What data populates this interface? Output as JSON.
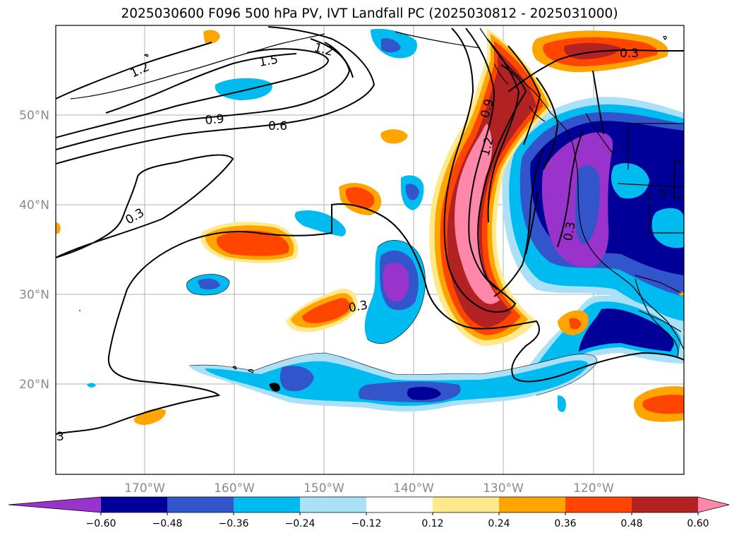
{
  "title": "2025030600 F096 500 hPa PV, IVT Landfall PC (2025030812 - 2025031000)",
  "map": {
    "lat_labels": [
      "50°N",
      "40°N",
      "30°N",
      "20°N"
    ],
    "lon_labels": [
      "170°W",
      "160°W",
      "150°W",
      "140°W",
      "130°W",
      "120°W"
    ]
  },
  "contour_labels": [
    "1.2",
    "1.5",
    "1.2",
    "0.9",
    "0.6",
    "0.3",
    "0.9",
    "1.2",
    "0.3",
    "0.3",
    "0.3",
    "3"
  ],
  "colorbar": {
    "colors": [
      "#9933cc",
      "#000099",
      "#3355cc",
      "#00bbf0",
      "#aae0f8",
      "#ffffff",
      "#ffe98a",
      "#ffa500",
      "#ff4500",
      "#b22222",
      "#ff88aa"
    ],
    "labels": [
      "−0.60",
      "−0.48",
      "−0.36",
      "−0.24",
      "−0.12",
      "0.12",
      "0.24",
      "0.36",
      "0.48",
      "0.60"
    ]
  }
}
